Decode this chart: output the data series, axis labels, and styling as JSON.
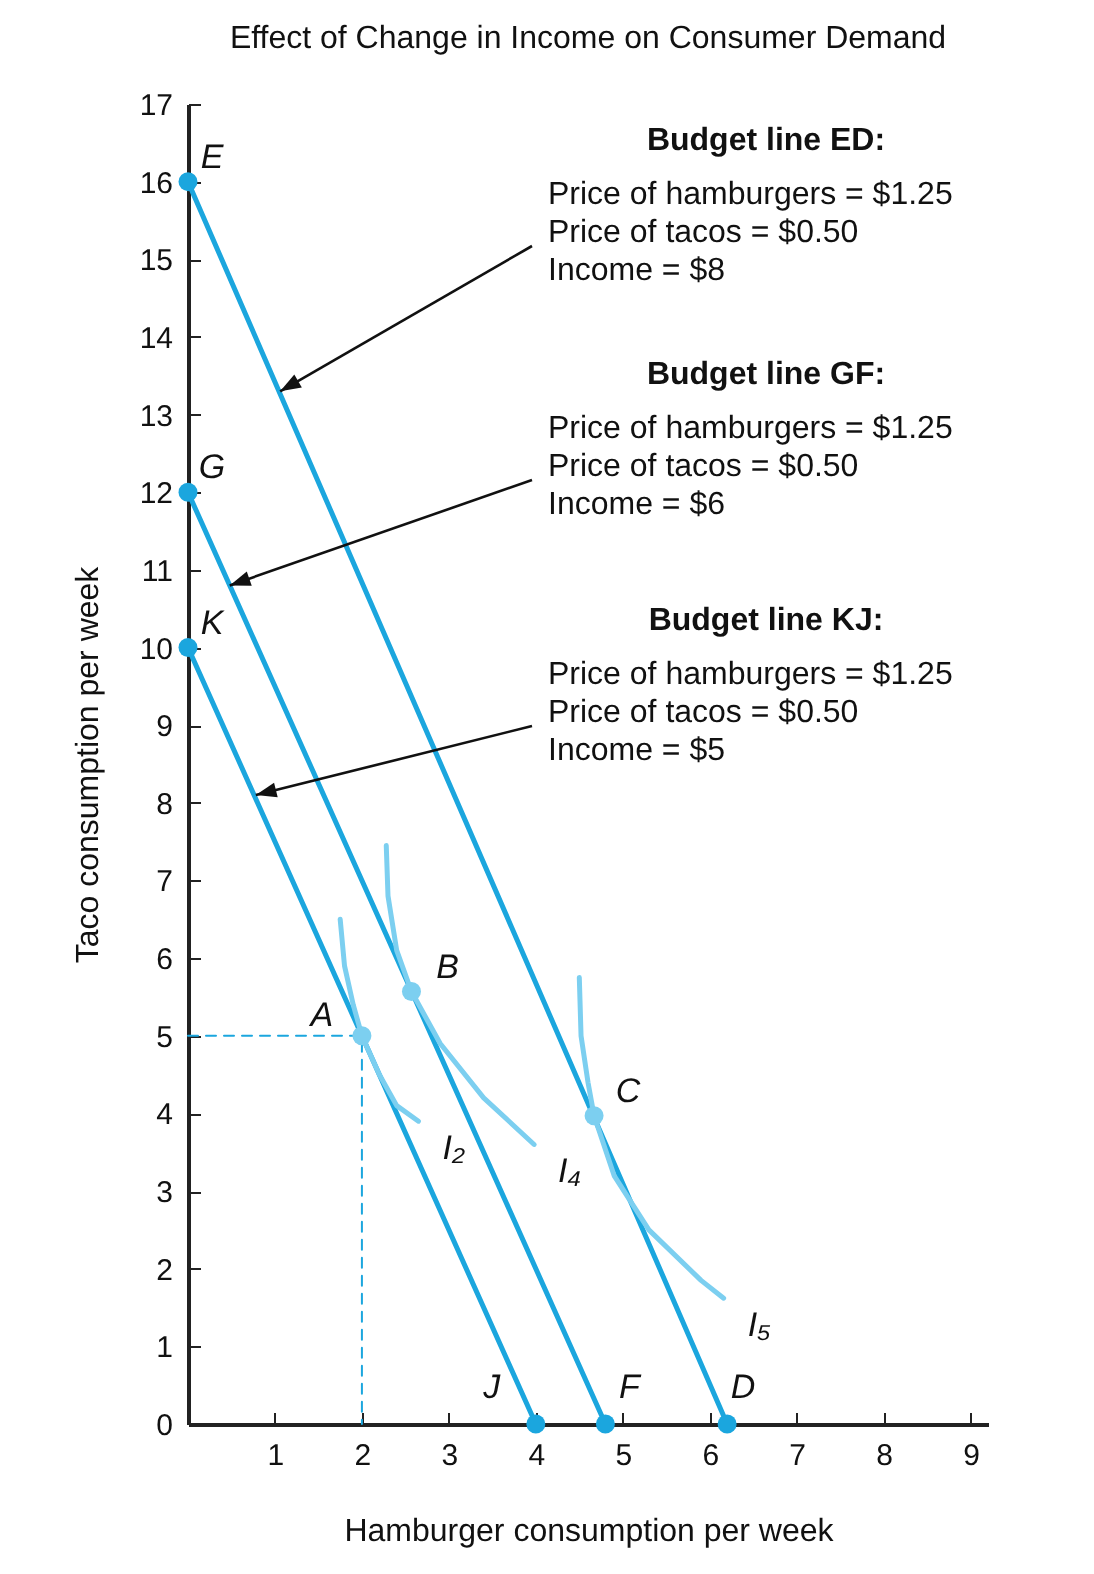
{
  "chart_data": {
    "type": "line",
    "title": "Effect of Change in Income on Consumer Demand",
    "xlabel": "Hamburger consumption per week",
    "ylabel": "Taco consumption per week",
    "xlim": [
      0,
      9.2
    ],
    "ylim": [
      0,
      17
    ],
    "xticks": [
      1,
      2,
      3,
      4,
      5,
      6,
      7,
      8,
      9
    ],
    "yticks": [
      0,
      1,
      2,
      3,
      4,
      5,
      6,
      7,
      8,
      9,
      10,
      11,
      12,
      13,
      14,
      15,
      16,
      17
    ],
    "grid": false,
    "series": [
      {
        "type": "line",
        "color": "#1ba6de",
        "x": [
          0,
          6.2
        ],
        "values": [
          16,
          0
        ]
      },
      {
        "type": "line",
        "color": "#1ba6de",
        "x": [
          0,
          4.8
        ],
        "values": [
          12,
          0
        ]
      },
      {
        "type": "line",
        "color": "#1ba6de",
        "x": [
          0,
          4
        ],
        "values": [
          10,
          0
        ]
      },
      {
        "type": "line",
        "name": "I₂",
        "color": "#7ccff0",
        "x": [
          1.75,
          1.8,
          1.9,
          2,
          2.2,
          2.4,
          2.65
        ],
        "values": [
          6.5,
          5.9,
          5.4,
          5,
          4.5,
          4.1,
          3.9
        ]
      },
      {
        "type": "line",
        "name": "I₄",
        "color": "#7ccff0",
        "x": [
          2.28,
          2.3,
          2.4,
          2.57,
          2.9,
          3.4,
          3.98
        ],
        "values": [
          7.45,
          6.8,
          6.1,
          5.57,
          4.9,
          4.2,
          3.6
        ]
      },
      {
        "type": "line",
        "name": "I₅",
        "color": "#7ccff0",
        "x": [
          4.5,
          4.52,
          4.6,
          4.67,
          4.9,
          5.3,
          5.9,
          6.16
        ],
        "values": [
          5.75,
          5,
          4.4,
          3.97,
          3.2,
          2.5,
          1.85,
          1.62
        ]
      },
      {
        "type": "line",
        "line_style": "dashed",
        "color": "#1ba6de",
        "x": [
          0,
          2,
          2
        ],
        "values": [
          5,
          5,
          0
        ]
      },
      {
        "type": "scatter",
        "marker": "circle",
        "colors": [
          "#1ba6de",
          "#1ba6de",
          "#1ba6de",
          "#7ccff0",
          "#7ccff0",
          "#7ccff0",
          "#1ba6de",
          "#1ba6de",
          "#1ba6de"
        ],
        "x": [
          0,
          0,
          0,
          2,
          2.57,
          4.67,
          4,
          4.8,
          6.2
        ],
        "values": [
          16,
          12,
          10,
          5,
          5.57,
          3.97,
          0,
          0,
          0
        ]
      }
    ],
    "annotations": [
      {
        "text": "E",
        "x": 0,
        "y": 16
      },
      {
        "text": "G",
        "x": 0,
        "y": 12
      },
      {
        "text": "K",
        "x": 0,
        "y": 10
      },
      {
        "text": "A",
        "x": 2,
        "y": 5
      },
      {
        "text": "B",
        "x": 2.57,
        "y": 5.57
      },
      {
        "text": "C",
        "x": 4.67,
        "y": 3.97
      },
      {
        "text": "J",
        "x": 4,
        "y": 0
      },
      {
        "text": "F",
        "x": 4.8,
        "y": 0
      },
      {
        "text": "D",
        "x": 6.2,
        "y": 0
      },
      "Budget line ED:",
      {
        "text": "Price of hamburgers = $1.25\nPrice of tacos = $0.50\nIncome = $8",
        "x": 1.06,
        "y": 13.3
      },
      "Budget line GF:",
      {
        "text": "Price of hamburgers = $1.25\nPrice of tacos = $0.50\nIncome = $6",
        "x": 0.48,
        "y": 10.8
      },
      "Budget line KJ:",
      {
        "text": "Price of hamburgers = $1.25\nPrice of tacos = $0.50\nIncome = $5",
        "x": 0.78,
        "y": 8.1
      }
    ]
  }
}
